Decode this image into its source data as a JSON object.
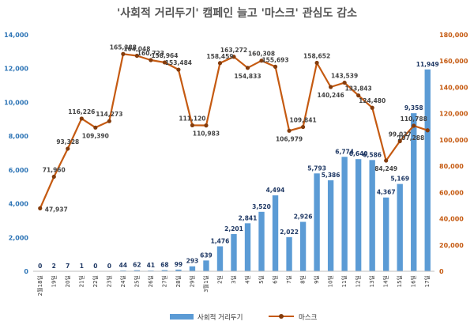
{
  "chart_data": {
    "type": "bar",
    "title": "'사회적 거리두기' 캠페인 늘고 '마스크' 관심도 감소",
    "categories": [
      "2월18일",
      "19일",
      "20일",
      "21일",
      "22일",
      "23일",
      "24일",
      "25일",
      "26일",
      "27일",
      "28일",
      "29일",
      "3월1일",
      "2일",
      "3일",
      "4일",
      "5일",
      "6일",
      "7일",
      "8일",
      "9일",
      "10일",
      "11일",
      "12일",
      "13일",
      "14일",
      "15일",
      "16일",
      "17일"
    ],
    "series": [
      {
        "name": "사회적 거리두기",
        "type": "bar",
        "axis": "left",
        "color": "#5b9bd5",
        "values": [
          0,
          2,
          7,
          1,
          0,
          0,
          44,
          62,
          41,
          68,
          99,
          293,
          639,
          1476,
          2201,
          2841,
          3520,
          4494,
          2022,
          2926,
          5793,
          5386,
          6774,
          6640,
          6586,
          4367,
          5169,
          9358,
          11949
        ],
        "labels": [
          "0",
          "2",
          "7",
          "1",
          "0",
          "0",
          "44",
          "62",
          "41",
          "68",
          "99",
          "293",
          "639",
          "1,476",
          "2,201",
          "2,841",
          "3,520",
          "4,494",
          "2,022",
          "2,926",
          "5,793",
          "5,386",
          "6,774",
          "6,640",
          "6,586",
          "4,367",
          "5,169",
          "9,358",
          "11,949"
        ]
      },
      {
        "name": "마스크",
        "type": "line",
        "axis": "right",
        "color": "#c55a11",
        "values": [
          47937,
          71960,
          93328,
          116226,
          109390,
          114273,
          165388,
          164048,
          160723,
          158964,
          153484,
          111120,
          110983,
          158459,
          163272,
          154833,
          160308,
          155693,
          106979,
          109841,
          158652,
          140246,
          143539,
          133843,
          124480,
          84249,
          99037,
          110788,
          107288
        ],
        "labels": [
          "47,937",
          "71,960",
          "93,328",
          "116,226",
          "109,390",
          "114,273",
          "165,388",
          "164,048",
          "160,723",
          "158,964",
          "153,484",
          "111,120",
          "110,983",
          "158,459",
          "163,272",
          "154,833",
          "160,308",
          "155,693",
          "106,979",
          "109,841",
          "158,652",
          "140,246",
          "143,539",
          "133,843",
          "124,480",
          "84,249",
          "99,037",
          "110,788",
          "107,288"
        ]
      }
    ],
    "left_axis": {
      "ylim": [
        0,
        14000
      ],
      "ticks": [
        0,
        2000,
        4000,
        6000,
        8000,
        10000,
        12000,
        14000
      ],
      "tick_labels": [
        "0",
        "2,000",
        "4,000",
        "6,000",
        "8,000",
        "10,000",
        "12,000",
        "14,000"
      ],
      "color": "#2e75b6"
    },
    "right_axis": {
      "ylim": [
        0,
        180000
      ],
      "ticks": [
        0,
        20000,
        40000,
        60000,
        80000,
        100000,
        120000,
        140000,
        160000,
        180000
      ],
      "tick_labels": [
        "0",
        "20,000",
        "40,000",
        "60,000",
        "80,000",
        "100,000",
        "120,000",
        "140,000",
        "160,000",
        "180,000"
      ],
      "color": "#c55a11"
    },
    "grid": false,
    "legend": {
      "placement": "bottom",
      "entries": [
        "사회적 거리두기",
        "마스크"
      ]
    },
    "colors": {
      "title": "#555555",
      "bar_label": "#1f3864",
      "line_label": "#444444",
      "marker": "#843c0c"
    }
  }
}
